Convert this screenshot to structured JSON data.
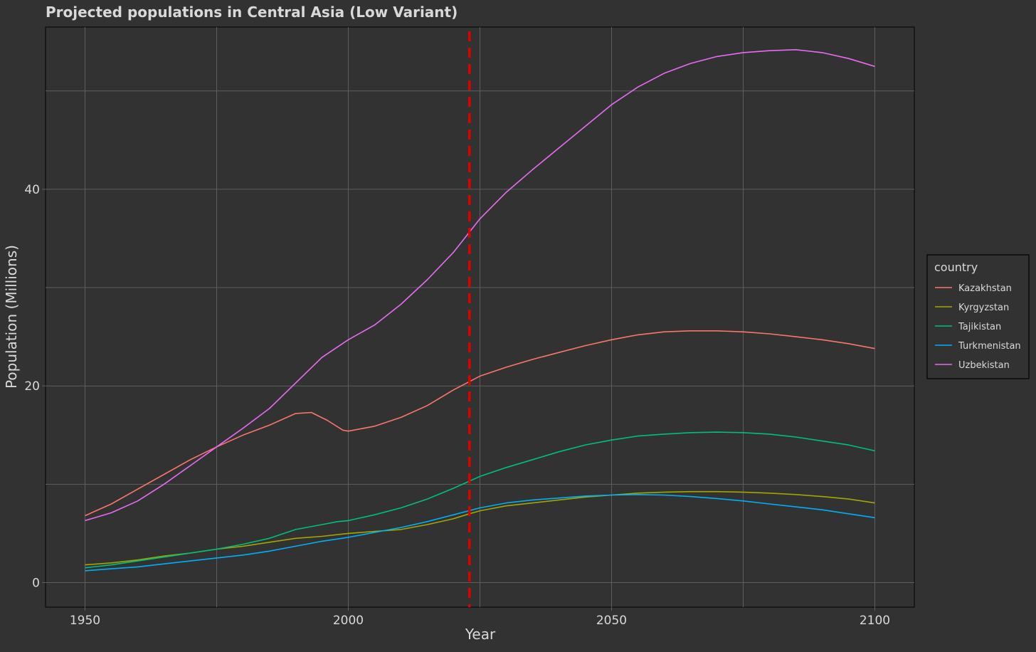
{
  "chart_data": {
    "type": "line",
    "title": "Projected populations in Central Asia (Low Variant)",
    "xlabel": "Year",
    "ylabel": "Population (Millions)",
    "xlim": [
      1942.5,
      2107.5
    ],
    "ylim": [
      -2.5,
      56.5
    ],
    "x_ticks": [
      1950,
      2000,
      2050,
      2100
    ],
    "y_ticks": [
      0,
      20,
      40
    ],
    "x_minor_ticks": [
      1975,
      2025,
      2075
    ],
    "y_minor_ticks": [
      10,
      30,
      50
    ],
    "grid": true,
    "legend": {
      "title": "country",
      "position": "right"
    },
    "reference_line": {
      "x": 2023,
      "style": "dashed",
      "color": "#e00000"
    },
    "colors": {
      "background": "#323232",
      "panel": "#323232",
      "grid": "#5e5e5e",
      "text": "#d9d9d9"
    },
    "series": [
      {
        "name": "Kazakhstan",
        "color": "#F8766D",
        "points": [
          [
            1950,
            6.8
          ],
          [
            1955,
            8.0
          ],
          [
            1960,
            9.5
          ],
          [
            1965,
            11.0
          ],
          [
            1970,
            12.5
          ],
          [
            1975,
            13.8
          ],
          [
            1980,
            15.0
          ],
          [
            1985,
            16.0
          ],
          [
            1990,
            17.2
          ],
          [
            1993,
            17.3
          ],
          [
            1996,
            16.5
          ],
          [
            1999,
            15.5
          ],
          [
            2000,
            15.4
          ],
          [
            2005,
            15.9
          ],
          [
            2010,
            16.8
          ],
          [
            2015,
            18.0
          ],
          [
            2020,
            19.6
          ],
          [
            2025,
            21.0
          ],
          [
            2030,
            21.9
          ],
          [
            2035,
            22.7
          ],
          [
            2040,
            23.4
          ],
          [
            2045,
            24.1
          ],
          [
            2050,
            24.7
          ],
          [
            2055,
            25.2
          ],
          [
            2060,
            25.5
          ],
          [
            2065,
            25.6
          ],
          [
            2070,
            25.6
          ],
          [
            2075,
            25.5
          ],
          [
            2080,
            25.3
          ],
          [
            2085,
            25.0
          ],
          [
            2090,
            24.7
          ],
          [
            2095,
            24.3
          ],
          [
            2100,
            23.8
          ]
        ]
      },
      {
        "name": "Kyrgyzstan",
        "color": "#A3A500",
        "points": [
          [
            1950,
            1.8
          ],
          [
            1955,
            2.0
          ],
          [
            1960,
            2.3
          ],
          [
            1965,
            2.7
          ],
          [
            1970,
            3.0
          ],
          [
            1975,
            3.4
          ],
          [
            1980,
            3.7
          ],
          [
            1985,
            4.1
          ],
          [
            1990,
            4.5
          ],
          [
            1995,
            4.7
          ],
          [
            2000,
            5.0
          ],
          [
            2005,
            5.2
          ],
          [
            2010,
            5.4
          ],
          [
            2015,
            5.9
          ],
          [
            2020,
            6.5
          ],
          [
            2023,
            7.0
          ],
          [
            2025,
            7.3
          ],
          [
            2030,
            7.8
          ],
          [
            2035,
            8.1
          ],
          [
            2040,
            8.4
          ],
          [
            2045,
            8.7
          ],
          [
            2050,
            8.9
          ],
          [
            2055,
            9.1
          ],
          [
            2060,
            9.2
          ],
          [
            2065,
            9.25
          ],
          [
            2070,
            9.25
          ],
          [
            2075,
            9.2
          ],
          [
            2080,
            9.1
          ],
          [
            2085,
            8.95
          ],
          [
            2090,
            8.75
          ],
          [
            2095,
            8.5
          ],
          [
            2100,
            8.1
          ]
        ]
      },
      {
        "name": "Tajikistan",
        "color": "#00BF7D",
        "points": [
          [
            1950,
            1.5
          ],
          [
            1955,
            1.8
          ],
          [
            1960,
            2.2
          ],
          [
            1965,
            2.6
          ],
          [
            1970,
            3.0
          ],
          [
            1975,
            3.4
          ],
          [
            1980,
            3.9
          ],
          [
            1985,
            4.5
          ],
          [
            1990,
            5.4
          ],
          [
            1995,
            5.9
          ],
          [
            1998,
            6.2
          ],
          [
            2000,
            6.3
          ],
          [
            2005,
            6.9
          ],
          [
            2010,
            7.6
          ],
          [
            2015,
            8.5
          ],
          [
            2020,
            9.6
          ],
          [
            2025,
            10.8
          ],
          [
            2030,
            11.7
          ],
          [
            2035,
            12.5
          ],
          [
            2040,
            13.3
          ],
          [
            2045,
            14.0
          ],
          [
            2050,
            14.5
          ],
          [
            2055,
            14.9
          ],
          [
            2060,
            15.1
          ],
          [
            2065,
            15.25
          ],
          [
            2070,
            15.3
          ],
          [
            2075,
            15.25
          ],
          [
            2080,
            15.1
          ],
          [
            2085,
            14.8
          ],
          [
            2090,
            14.4
          ],
          [
            2095,
            14.0
          ],
          [
            2100,
            13.4
          ]
        ]
      },
      {
        "name": "Turkmenistan",
        "color": "#00B0F6",
        "points": [
          [
            1950,
            1.2
          ],
          [
            1955,
            1.4
          ],
          [
            1960,
            1.6
          ],
          [
            1965,
            1.9
          ],
          [
            1970,
            2.2
          ],
          [
            1975,
            2.5
          ],
          [
            1980,
            2.8
          ],
          [
            1985,
            3.2
          ],
          [
            1990,
            3.7
          ],
          [
            1995,
            4.2
          ],
          [
            2000,
            4.6
          ],
          [
            2005,
            5.1
          ],
          [
            2010,
            5.6
          ],
          [
            2015,
            6.2
          ],
          [
            2020,
            6.9
          ],
          [
            2025,
            7.6
          ],
          [
            2030,
            8.1
          ],
          [
            2035,
            8.4
          ],
          [
            2040,
            8.6
          ],
          [
            2045,
            8.8
          ],
          [
            2050,
            8.9
          ],
          [
            2055,
            8.95
          ],
          [
            2060,
            8.9
          ],
          [
            2065,
            8.75
          ],
          [
            2070,
            8.55
          ],
          [
            2075,
            8.3
          ],
          [
            2080,
            8.0
          ],
          [
            2085,
            7.7
          ],
          [
            2090,
            7.4
          ],
          [
            2095,
            7.0
          ],
          [
            2100,
            6.6
          ]
        ]
      },
      {
        "name": "Uzbekistan",
        "color": "#E76BF3",
        "points": [
          [
            1950,
            6.3
          ],
          [
            1955,
            7.1
          ],
          [
            1960,
            8.3
          ],
          [
            1965,
            10.0
          ],
          [
            1970,
            11.9
          ],
          [
            1975,
            13.8
          ],
          [
            1980,
            15.7
          ],
          [
            1985,
            17.7
          ],
          [
            1990,
            20.3
          ],
          [
            1995,
            22.9
          ],
          [
            2000,
            24.7
          ],
          [
            2005,
            26.2
          ],
          [
            2010,
            28.3
          ],
          [
            2015,
            30.8
          ],
          [
            2020,
            33.6
          ],
          [
            2025,
            37.0
          ],
          [
            2030,
            39.7
          ],
          [
            2035,
            42.0
          ],
          [
            2040,
            44.2
          ],
          [
            2045,
            46.4
          ],
          [
            2050,
            48.6
          ],
          [
            2055,
            50.4
          ],
          [
            2060,
            51.8
          ],
          [
            2065,
            52.8
          ],
          [
            2070,
            53.5
          ],
          [
            2075,
            53.9
          ],
          [
            2080,
            54.1
          ],
          [
            2085,
            54.2
          ],
          [
            2090,
            53.9
          ],
          [
            2095,
            53.3
          ],
          [
            2100,
            52.5
          ]
        ]
      }
    ]
  }
}
